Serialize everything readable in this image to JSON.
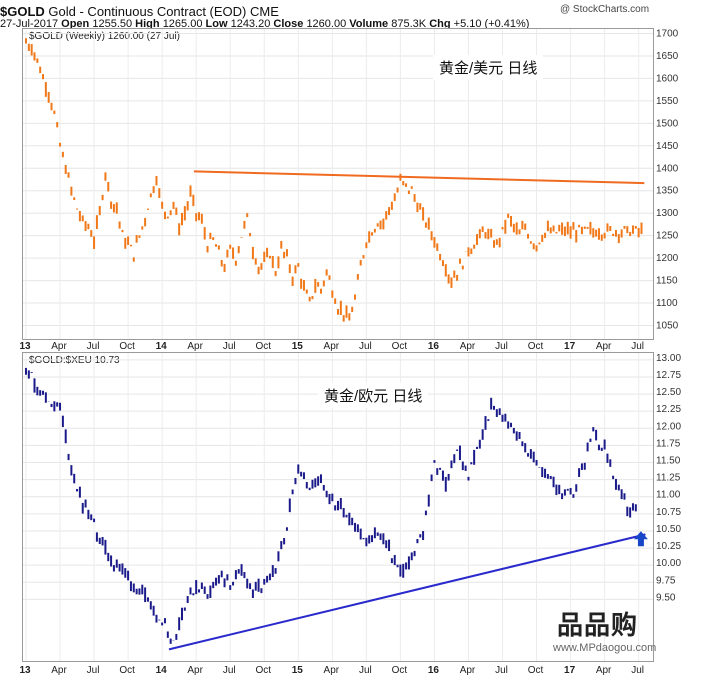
{
  "header": {
    "symbol": "$GOLD",
    "instrument": "Gold - Continuous Contract (EOD)  CME",
    "source": "@ StockCharts.com",
    "date": "27-Jul-2017",
    "open_label": "Open",
    "open": "1255.50",
    "high_label": "High",
    "high": "1265.00",
    "low_label": "Low",
    "low": "1243.20",
    "close_label": "Close",
    "close": "1260.00",
    "volume_label": "Volume",
    "volume": "875.3K",
    "chg_label": "Chg",
    "chg": "+5.10 (+0.41%)"
  },
  "watermark": {
    "logo": "品品购",
    "url": "www.MPdaogou.com"
  },
  "x_ticks": [
    "13",
    "Apr",
    "Jul",
    "Oct",
    "14",
    "Apr",
    "Jul",
    "Oct",
    "15",
    "Apr",
    "Jul",
    "Oct",
    "16",
    "Apr",
    "Jul",
    "Oct",
    "17",
    "Apr",
    "Jul"
  ],
  "chart_data": [
    {
      "type": "line",
      "title": "$GOLD (Weekly) 1260.00 (27 Jul)",
      "annotation": "黄金/美元   日线",
      "color": "#f07818",
      "line_color": "#f06a20",
      "ylim": [
        1020,
        1710
      ],
      "yticks": [
        1050,
        1100,
        1150,
        1200,
        1250,
        1300,
        1350,
        1400,
        1450,
        1500,
        1550,
        1600,
        1650,
        1700
      ],
      "x": [
        0,
        0.5,
        1,
        1.5,
        2,
        2.5,
        3,
        3.5,
        4,
        4.5,
        5,
        5.5,
        6,
        6.5,
        7,
        7.5,
        8,
        8.5,
        9,
        9.5,
        10,
        10.5,
        11,
        11.5,
        12,
        12.5,
        13,
        13.5,
        14,
        14.5,
        15,
        15.5,
        16,
        16.5,
        17,
        17.5,
        18,
        18.5,
        19,
        19.5,
        20,
        20.5,
        21,
        21.5,
        22,
        22.5,
        23,
        23.5,
        24,
        24.5,
        25,
        25.5,
        26,
        26.5,
        27,
        27.5,
        28,
        28.5,
        29,
        29.5,
        30,
        30.5,
        31,
        31.5,
        32,
        32.5,
        33,
        33.5,
        34,
        34.5,
        35,
        35.5,
        36,
        36.5,
        37,
        37.5,
        38,
        38.5,
        39,
        39.5,
        40,
        40.5,
        41,
        41.5,
        42,
        42.5,
        43,
        43.5,
        44,
        44.5,
        45,
        45.5,
        46,
        46.5,
        47,
        47.5,
        48,
        48.5,
        49,
        49.5,
        50,
        50.5,
        51,
        51.5,
        52,
        52.5,
        53,
        53.5,
        54,
        54.5
      ],
      "values": [
        1680,
        1670,
        1640,
        1600,
        1570,
        1520,
        1450,
        1400,
        1350,
        1310,
        1280,
        1270,
        1240,
        1300,
        1390,
        1330,
        1310,
        1250,
        1230,
        1210,
        1250,
        1290,
        1340,
        1380,
        1310,
        1300,
        1320,
        1270,
        1300,
        1340,
        1300,
        1280,
        1230,
        1240,
        1210,
        1180,
        1220,
        1200,
        1250,
        1290,
        1220,
        1180,
        1190,
        1210,
        1170,
        1220,
        1200,
        1160,
        1180,
        1130,
        1100,
        1140,
        1130,
        1170,
        1130,
        1090,
        1080,
        1060,
        1110,
        1180,
        1240,
        1260,
        1280,
        1280,
        1310,
        1330,
        1370,
        1360,
        1350,
        1320,
        1290,
        1270,
        1240,
        1210,
        1180,
        1150,
        1170,
        1190,
        1220,
        1230,
        1250,
        1260,
        1240,
        1230,
        1260,
        1290,
        1270,
        1250,
        1270,
        1240,
        1230,
        1250,
        1260,
        1255,
        1260,
        1262,
        1258,
        1260,
        1259,
        1261,
        1258,
        1260,
        1259,
        1260,
        1260,
        1260,
        1260,
        1260,
        1260,
        1260
      ],
      "trend": {
        "x": [
          14.8,
          54.5
        ],
        "y": [
          1393,
          1367
        ]
      }
    },
    {
      "type": "line",
      "title": "$GOLD:$XEU 10.73",
      "annotation": "黄金/欧元  日线",
      "color": "#1a1a8a",
      "line_color": "#2a2acc",
      "ylim": [
        8.6,
        13.1
      ],
      "yticks": [
        9.5,
        9.75,
        10.0,
        10.25,
        10.5,
        10.75,
        11.0,
        11.25,
        11.5,
        11.75,
        12.0,
        12.25,
        12.5,
        12.75,
        13.0
      ],
      "x": [
        0,
        1,
        2,
        3,
        4,
        5,
        6,
        7,
        8,
        9,
        10,
        11,
        12,
        13,
        14,
        15,
        16,
        17,
        18,
        19,
        20,
        21,
        22,
        23,
        24,
        25,
        26,
        27,
        28,
        29,
        30,
        31,
        32,
        33,
        34,
        35,
        36,
        37,
        38,
        39,
        40,
        41,
        42,
        43,
        44,
        45,
        46,
        47,
        48,
        49,
        50,
        51,
        52,
        53,
        54
      ],
      "values": [
        12.9,
        12.6,
        12.4,
        12.3,
        11.4,
        10.9,
        10.6,
        10.2,
        10.0,
        9.8,
        9.6,
        9.4,
        9.2,
        8.9,
        9.4,
        9.7,
        9.6,
        9.8,
        9.7,
        9.9,
        9.6,
        9.7,
        9.9,
        10.6,
        11.5,
        11.1,
        11.3,
        10.9,
        10.8,
        10.6,
        10.3,
        10.5,
        10.2,
        9.9,
        10.1,
        10.5,
        11.5,
        11.2,
        11.7,
        11.3,
        11.8,
        12.3,
        12.2,
        12.0,
        11.7,
        11.5,
        11.3,
        11.1,
        11.0,
        11.4,
        11.9,
        11.7,
        11.2,
        10.8,
        10.73
      ],
      "trend": {
        "x": [
          12.6,
          54.6
        ],
        "y": [
          8.77,
          10.45
        ]
      }
    }
  ]
}
